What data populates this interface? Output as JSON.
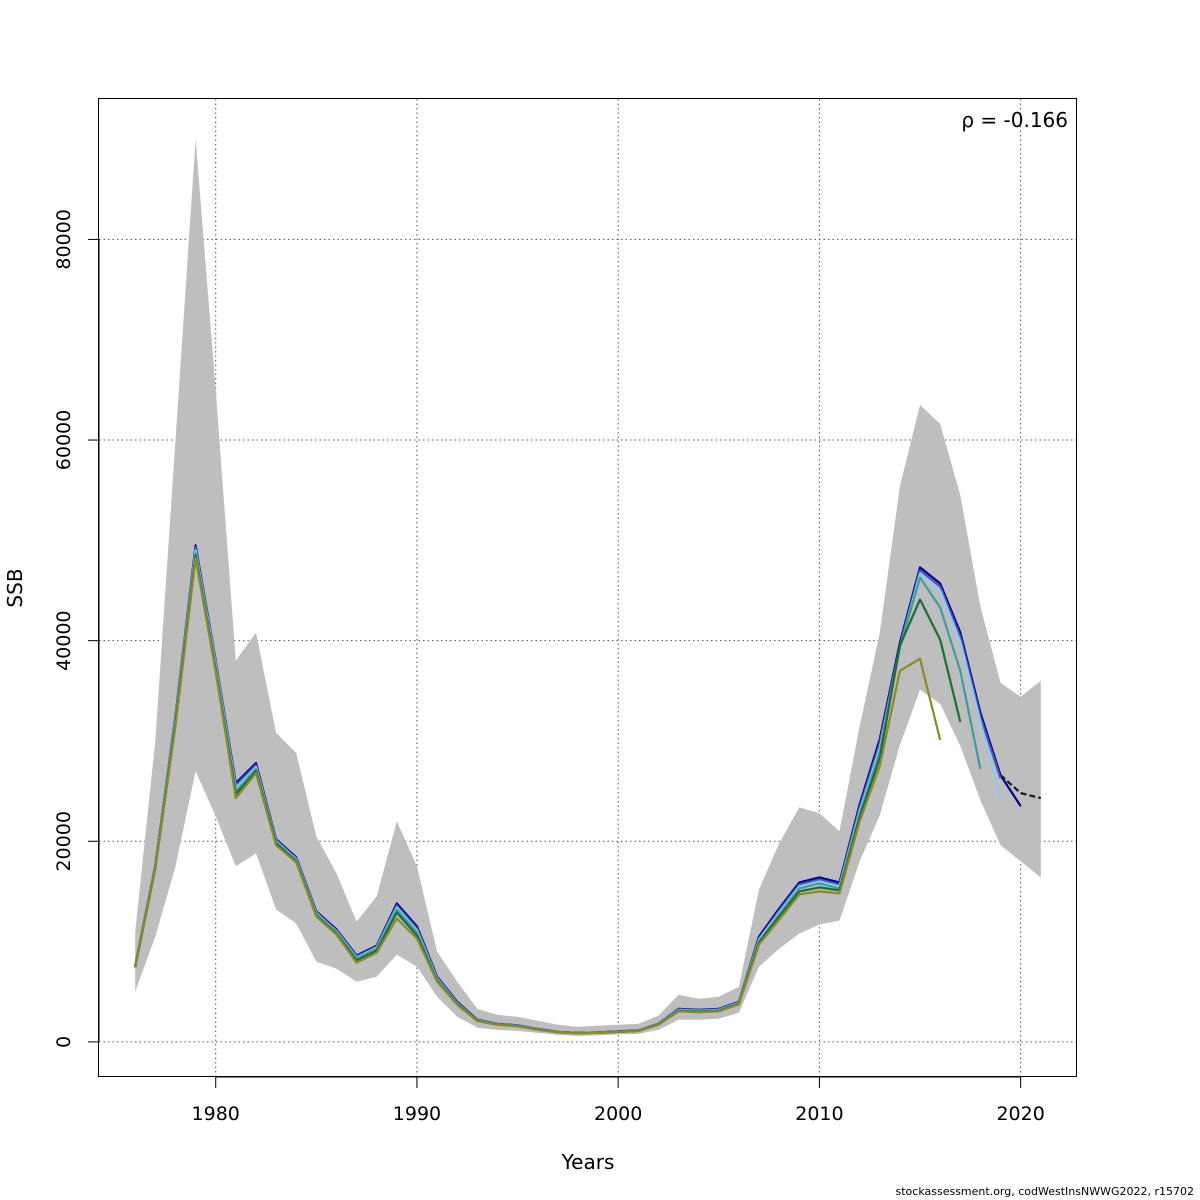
{
  "chart_data": {
    "type": "line",
    "xlabel": "Years",
    "ylabel": "SSB",
    "annotation": "ρ = -0.166",
    "footer": "stockassessment.org, codWestInsNWWG2022, r15702",
    "xlim": [
      1974.2,
      2022.8
    ],
    "ylim": [
      -3500,
      94000
    ],
    "x_ticks": [
      1980,
      1990,
      2000,
      2010,
      2020
    ],
    "y_ticks": [
      0,
      20000,
      40000,
      60000,
      80000
    ],
    "y_tick_labels": [
      "0",
      "20000",
      "40000",
      "60000",
      "80000"
    ],
    "grid": true,
    "band_color": "#bebebe",
    "band": {
      "x": [
        1976,
        1977,
        1978,
        1979,
        1980,
        1981,
        1982,
        1983,
        1984,
        1985,
        1986,
        1987,
        1988,
        1989,
        1990,
        1991,
        1992,
        1993,
        1994,
        1995,
        1996,
        1997,
        1998,
        1999,
        2000,
        2001,
        2002,
        2003,
        2004,
        2005,
        2006,
        2007,
        2008,
        2009,
        2010,
        2011,
        2012,
        2013,
        2014,
        2015,
        2016,
        2017,
        2018,
        2019,
        2020,
        2021
      ],
      "lower": [
        5000,
        10500,
        17500,
        27000,
        22500,
        17500,
        18800,
        13200,
        11800,
        8000,
        7300,
        6000,
        6500,
        8700,
        7500,
        4500,
        2500,
        1400,
        1200,
        1100,
        900,
        700,
        600,
        650,
        750,
        800,
        1200,
        2200,
        2200,
        2300,
        2900,
        7500,
        9300,
        10800,
        11700,
        12100,
        18000,
        22600,
        29600,
        35100,
        33700,
        29500,
        24100,
        19600,
        18000,
        16400
      ],
      "upper": [
        11000,
        30000,
        60000,
        90000,
        65000,
        38000,
        40800,
        30800,
        28800,
        20500,
        16800,
        12000,
        14500,
        22000,
        17500,
        9000,
        6000,
        3300,
        2700,
        2500,
        2100,
        1700,
        1500,
        1600,
        1700,
        1800,
        2600,
        4700,
        4300,
        4500,
        5500,
        15200,
        19800,
        23400,
        22800,
        21000,
        31500,
        40800,
        55400,
        63500,
        61600,
        54500,
        43400,
        35800,
        34400,
        36000
      ]
    },
    "series": [
      {
        "color": "#1a1a1a",
        "dashed": true,
        "x": [
          2019,
          2020,
          2021
        ],
        "values": [
          26600,
          24800,
          24300
        ]
      },
      {
        "color": "#00008b",
        "x": [
          1976,
          1977,
          1978,
          1979,
          1980,
          1981,
          1982,
          1983,
          1984,
          1985,
          1986,
          1987,
          1988,
          1989,
          1990,
          1991,
          1992,
          1993,
          1994,
          1995,
          1996,
          1997,
          1998,
          1999,
          2000,
          2001,
          2002,
          2003,
          2004,
          2005,
          2006,
          2007,
          2008,
          2009,
          2010,
          2011,
          2012,
          2013,
          2014,
          2015,
          2016,
          2017,
          2018,
          2019,
          2020
        ],
        "values": [
          7600,
          17600,
          32500,
          49500,
          38000,
          25800,
          27800,
          20200,
          18400,
          13000,
          11200,
          8600,
          9600,
          13800,
          11500,
          6500,
          4000,
          2200,
          1800,
          1650,
          1300,
          1000,
          900,
          950,
          1050,
          1150,
          1800,
          3300,
          3200,
          3300,
          4000,
          10500,
          13300,
          15900,
          16400,
          15900,
          23700,
          30200,
          39800,
          47300,
          45700,
          40800,
          32800,
          26600,
          23500
        ]
      },
      {
        "color": "#4f52c0",
        "x": [
          1976,
          1977,
          1978,
          1979,
          1980,
          1981,
          1982,
          1983,
          1984,
          1985,
          1986,
          1987,
          1988,
          1989,
          1990,
          1991,
          1992,
          1993,
          1994,
          1995,
          1996,
          1997,
          1998,
          1999,
          2000,
          2001,
          2002,
          2003,
          2004,
          2005,
          2006,
          2007,
          2008,
          2009,
          2010,
          2011,
          2012,
          2013,
          2014,
          2015,
          2016,
          2017,
          2018,
          2019
        ],
        "values": [
          7600,
          17600,
          32400,
          49300,
          37900,
          25600,
          27600,
          20100,
          18300,
          12900,
          11100,
          8500,
          9500,
          13600,
          11300,
          6400,
          3900,
          2150,
          1780,
          1630,
          1280,
          990,
          890,
          940,
          1030,
          1130,
          1780,
          3250,
          3150,
          3250,
          3950,
          10300,
          13100,
          15700,
          16200,
          15700,
          23400,
          29800,
          39500,
          47000,
          45400,
          40400,
          32400,
          26300
        ]
      },
      {
        "color": "#87ceeb",
        "x": [
          1976,
          1977,
          1978,
          1979,
          1980,
          1981,
          1982,
          1983,
          1984,
          1985,
          1986,
          1987,
          1988,
          1989,
          1990,
          1991,
          1992,
          1993,
          1994,
          1995,
          1996,
          1997,
          1998,
          1999,
          2000,
          2001,
          2002,
          2003,
          2004,
          2005,
          2006,
          2007,
          2008,
          2009,
          2010,
          2011,
          2012,
          2013,
          2014,
          2015,
          2016,
          2017,
          2018,
          2019
        ],
        "values": [
          7550,
          17500,
          32200,
          49000,
          37600,
          25300,
          27400,
          20000,
          18200,
          12800,
          11000,
          8400,
          9400,
          13400,
          11100,
          6300,
          3850,
          2130,
          1760,
          1610,
          1260,
          980,
          880,
          930,
          1020,
          1120,
          1760,
          3200,
          3100,
          3200,
          3900,
          10200,
          12900,
          15500,
          16000,
          15500,
          23000,
          29300,
          39200,
          46700,
          45000,
          39900,
          31900,
          24300
        ]
      },
      {
        "color": "#3aa0a0",
        "x": [
          1976,
          1977,
          1978,
          1979,
          1980,
          1981,
          1982,
          1983,
          1984,
          1985,
          1986,
          1987,
          1988,
          1989,
          1990,
          1991,
          1992,
          1993,
          1994,
          1995,
          1996,
          1997,
          1998,
          1999,
          2000,
          2001,
          2002,
          2003,
          2004,
          2005,
          2006,
          2007,
          2008,
          2009,
          2010,
          2011,
          2012,
          2013,
          2014,
          2015,
          2016,
          2017,
          2018
        ],
        "values": [
          7500,
          17400,
          32000,
          48700,
          37300,
          25000,
          27200,
          19900,
          18100,
          12700,
          10900,
          8300,
          9300,
          13200,
          10900,
          6200,
          3800,
          2110,
          1740,
          1590,
          1240,
          970,
          870,
          920,
          1010,
          1110,
          1740,
          3150,
          3050,
          3150,
          3850,
          10000,
          12700,
          15300,
          15800,
          15300,
          22700,
          28900,
          39300,
          46300,
          43300,
          37000,
          27200
        ]
      },
      {
        "color": "#1a7030",
        "x": [
          1976,
          1977,
          1978,
          1979,
          1980,
          1981,
          1982,
          1983,
          1984,
          1985,
          1986,
          1987,
          1988,
          1989,
          1990,
          1991,
          1992,
          1993,
          1994,
          1995,
          1996,
          1997,
          1998,
          1999,
          2000,
          2001,
          2002,
          2003,
          2004,
          2005,
          2006,
          2007,
          2008,
          2009,
          2010,
          2011,
          2012,
          2013,
          2014,
          2015,
          2016,
          2017
        ],
        "values": [
          7450,
          17300,
          31800,
          48500,
          37100,
          24700,
          27000,
          19800,
          18000,
          12600,
          10800,
          8100,
          9100,
          12900,
          10600,
          6100,
          3750,
          2090,
          1720,
          1570,
          1220,
          960,
          860,
          910,
          1000,
          1100,
          1720,
          3100,
          3000,
          3100,
          3800,
          9900,
          12500,
          15000,
          15400,
          15100,
          22400,
          28300,
          39500,
          44100,
          40100,
          31900
        ]
      },
      {
        "color": "#8b8b22",
        "x": [
          1976,
          1977,
          1978,
          1979,
          1980,
          1981,
          1982,
          1983,
          1984,
          1985,
          1986,
          1987,
          1988,
          1989,
          1990,
          1991,
          1992,
          1993,
          1994,
          1995,
          1996,
          1997,
          1998,
          1999,
          2000,
          2001,
          2002,
          2003,
          2004,
          2005,
          2006,
          2007,
          2008,
          2009,
          2010,
          2011,
          2012,
          2013,
          2014,
          2015,
          2016
        ],
        "values": [
          7400,
          17200,
          31500,
          48200,
          36900,
          24300,
          26800,
          19600,
          17900,
          12500,
          10700,
          7900,
          8900,
          12300,
          10300,
          6000,
          3700,
          2070,
          1700,
          1550,
          1200,
          950,
          850,
          900,
          990,
          1090,
          1700,
          3050,
          2950,
          3050,
          3750,
          9700,
          12200,
          14700,
          15000,
          14800,
          22000,
          27500,
          37000,
          38200,
          30100
        ]
      }
    ]
  }
}
